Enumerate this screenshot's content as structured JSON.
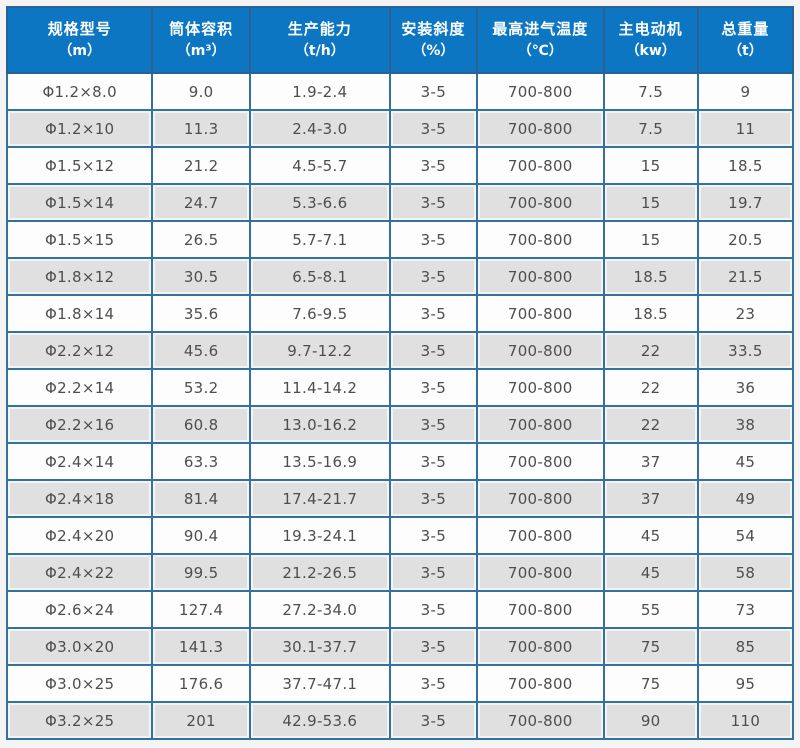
{
  "colors": {
    "header_bg": "#0d76c2",
    "header_text": "#ffffff",
    "border_outer": "#25639b",
    "border_header": "#2b6194",
    "border_inner": "#33719f",
    "row_odd": "#fdfdfd",
    "row_even": "#e0e0e0",
    "cell_text": "#4c4e50",
    "page_bg": "#f4f4f4"
  },
  "table": {
    "columns": [
      {
        "label": "规格型号",
        "unit": "（m）"
      },
      {
        "label": "筒体容积",
        "unit": "（m³）"
      },
      {
        "label": "生产能力",
        "unit": "（t/h）"
      },
      {
        "label": "安装斜度",
        "unit": "（%）"
      },
      {
        "label": "最高进气温度",
        "unit": "（℃）"
      },
      {
        "label": "主电动机",
        "unit": "（kw）"
      },
      {
        "label": "总重量",
        "unit": "（t）"
      }
    ],
    "rows": [
      [
        "Φ1.2×8.0",
        "9.0",
        "1.9-2.4",
        "3-5",
        "700-800",
        "7.5",
        "9"
      ],
      [
        "Φ1.2×10",
        "11.3",
        "2.4-3.0",
        "3-5",
        "700-800",
        "7.5",
        "11"
      ],
      [
        "Φ1.5×12",
        "21.2",
        "4.5-5.7",
        "3-5",
        "700-800",
        "15",
        "18.5"
      ],
      [
        "Φ1.5×14",
        "24.7",
        "5.3-6.6",
        "3-5",
        "700-800",
        "15",
        "19.7"
      ],
      [
        "Φ1.5×15",
        "26.5",
        "5.7-7.1",
        "3-5",
        "700-800",
        "15",
        "20.5"
      ],
      [
        "Φ1.8×12",
        "30.5",
        "6.5-8.1",
        "3-5",
        "700-800",
        "18.5",
        "21.5"
      ],
      [
        "Φ1.8×14",
        "35.6",
        "7.6-9.5",
        "3-5",
        "700-800",
        "18.5",
        "23"
      ],
      [
        "Φ2.2×12",
        "45.6",
        "9.7-12.2",
        "3-5",
        "700-800",
        "22",
        "33.5"
      ],
      [
        "Φ2.2×14",
        "53.2",
        "11.4-14.2",
        "3-5",
        "700-800",
        "22",
        "36"
      ],
      [
        "Φ2.2×16",
        "60.8",
        "13.0-16.2",
        "3-5",
        "700-800",
        "22",
        "38"
      ],
      [
        "Φ2.4×14",
        "63.3",
        "13.5-16.9",
        "3-5",
        "700-800",
        "37",
        "45"
      ],
      [
        "Φ2.4×18",
        "81.4",
        "17.4-21.7",
        "3-5",
        "700-800",
        "37",
        "49"
      ],
      [
        "Φ2.4×20",
        "90.4",
        "19.3-24.1",
        "3-5",
        "700-800",
        "45",
        "54"
      ],
      [
        "Φ2.4×22",
        "99.5",
        "21.2-26.5",
        "3-5",
        "700-800",
        "45",
        "58"
      ],
      [
        "Φ2.6×24",
        "127.4",
        "27.2-34.0",
        "3-5",
        "700-800",
        "55",
        "73"
      ],
      [
        "Φ3.0×20",
        "141.3",
        "30.1-37.7",
        "3-5",
        "700-800",
        "75",
        "85"
      ],
      [
        "Φ3.0×25",
        "176.6",
        "37.7-47.1",
        "3-5",
        "700-800",
        "75",
        "95"
      ],
      [
        "Φ3.2×25",
        "201",
        "42.9-53.6",
        "3-5",
        "700-800",
        "90",
        "110"
      ]
    ]
  },
  "chart_data": {
    "type": "table",
    "title": "",
    "columns": [
      "规格型号（m）",
      "筒体容积（m³）",
      "生产能力（t/h）",
      "安装斜度（%）",
      "最高进气温度（℃）",
      "主电动机（kw）",
      "总重量（t）"
    ],
    "rows": [
      [
        "Φ1.2×8.0",
        "9.0",
        "1.9-2.4",
        "3-5",
        "700-800",
        "7.5",
        "9"
      ],
      [
        "Φ1.2×10",
        "11.3",
        "2.4-3.0",
        "3-5",
        "700-800",
        "7.5",
        "11"
      ],
      [
        "Φ1.5×12",
        "21.2",
        "4.5-5.7",
        "3-5",
        "700-800",
        "15",
        "18.5"
      ],
      [
        "Φ1.5×14",
        "24.7",
        "5.3-6.6",
        "3-5",
        "700-800",
        "15",
        "19.7"
      ],
      [
        "Φ1.5×15",
        "26.5",
        "5.7-7.1",
        "3-5",
        "700-800",
        "15",
        "20.5"
      ],
      [
        "Φ1.8×12",
        "30.5",
        "6.5-8.1",
        "3-5",
        "700-800",
        "18.5",
        "21.5"
      ],
      [
        "Φ1.8×14",
        "35.6",
        "7.6-9.5",
        "3-5",
        "700-800",
        "18.5",
        "23"
      ],
      [
        "Φ2.2×12",
        "45.6",
        "9.7-12.2",
        "3-5",
        "700-800",
        "22",
        "33.5"
      ],
      [
        "Φ2.2×14",
        "53.2",
        "11.4-14.2",
        "3-5",
        "700-800",
        "22",
        "36"
      ],
      [
        "Φ2.2×16",
        "60.8",
        "13.0-16.2",
        "3-5",
        "700-800",
        "22",
        "38"
      ],
      [
        "Φ2.4×14",
        "63.3",
        "13.5-16.9",
        "3-5",
        "700-800",
        "37",
        "45"
      ],
      [
        "Φ2.4×18",
        "81.4",
        "17.4-21.7",
        "3-5",
        "700-800",
        "37",
        "49"
      ],
      [
        "Φ2.4×20",
        "90.4",
        "19.3-24.1",
        "3-5",
        "700-800",
        "45",
        "54"
      ],
      [
        "Φ2.4×22",
        "99.5",
        "21.2-26.5",
        "3-5",
        "700-800",
        "45",
        "58"
      ],
      [
        "Φ2.6×24",
        "127.4",
        "27.2-34.0",
        "3-5",
        "700-800",
        "55",
        "73"
      ],
      [
        "Φ3.0×20",
        "141.3",
        "30.1-37.7",
        "3-5",
        "700-800",
        "75",
        "85"
      ],
      [
        "Φ3.0×25",
        "176.6",
        "37.7-47.1",
        "3-5",
        "700-800",
        "75",
        "95"
      ],
      [
        "Φ3.2×25",
        "201",
        "42.9-53.6",
        "3-5",
        "700-800",
        "90",
        "110"
      ]
    ]
  }
}
